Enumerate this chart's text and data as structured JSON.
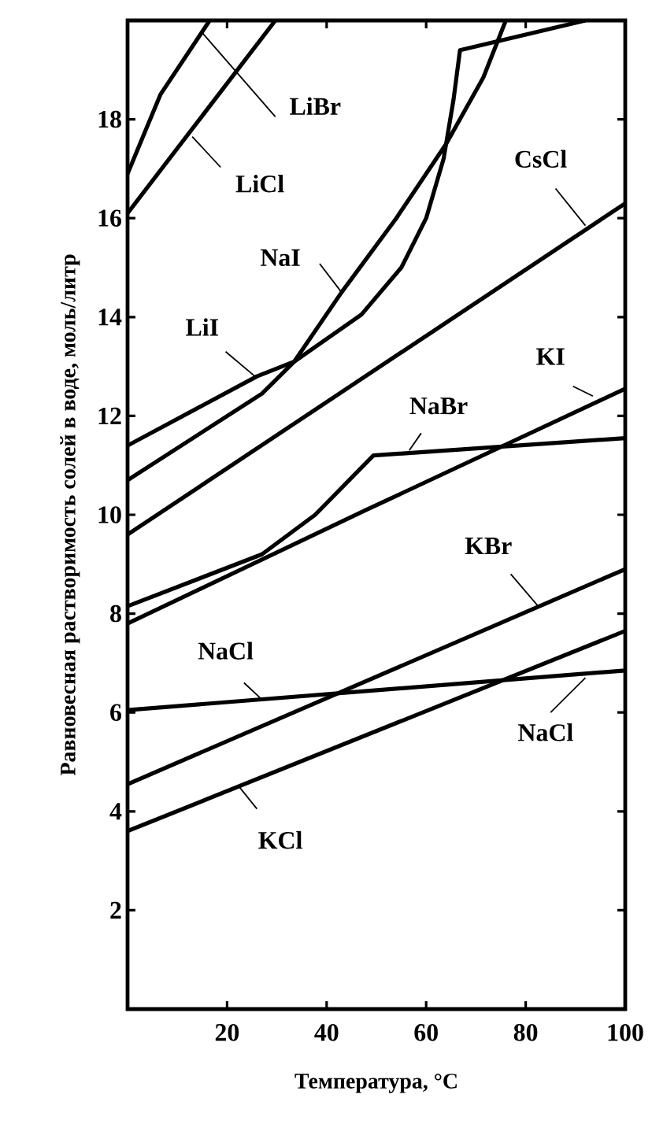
{
  "chart_data": {
    "type": "line",
    "xlabel": "Температура, °C",
    "ylabel": "Равновесная растворимость солей в воде, моль/литр",
    "xlim": [
      0,
      100
    ],
    "ylim": [
      0,
      20
    ],
    "xticks": [
      20,
      40,
      60,
      80,
      100
    ],
    "yticks": [
      2,
      4,
      6,
      8,
      10,
      12,
      14,
      16,
      18
    ],
    "grid": false,
    "line_style": "solid",
    "series": [
      {
        "name": "LiBr",
        "color": "#000000",
        "x": [
          0,
          6.6,
          16.5
        ],
        "values": [
          16.9,
          18.5,
          20
        ]
      },
      {
        "name": "LiCl",
        "color": "#000000",
        "x": [
          0,
          29.7
        ],
        "values": [
          16.1,
          20
        ]
      },
      {
        "name": "NaI",
        "color": "#000000",
        "x": [
          0,
          27,
          33.5,
          43,
          54,
          64,
          71.5,
          76
        ],
        "values": [
          10.7,
          12.45,
          13.1,
          14.5,
          16.0,
          17.5,
          18.85,
          20
        ]
      },
      {
        "name": "LiI",
        "color": "#000000",
        "x": [
          0,
          26,
          33.5,
          47,
          55,
          60,
          63.5,
          65.5,
          66.8,
          92
        ],
        "values": [
          11.4,
          12.8,
          13.1,
          14.05,
          15.0,
          16.0,
          17.2,
          18.4,
          19.4,
          20
        ]
      },
      {
        "name": "CsCl",
        "color": "#000000",
        "x": [
          0,
          100
        ],
        "values": [
          9.6,
          16.3
        ]
      },
      {
        "name": "KI",
        "color": "#000000",
        "x": [
          0,
          48,
          100
        ],
        "values": [
          7.8,
          10.1,
          12.55
        ]
      },
      {
        "name": "NaBr",
        "color": "#000000",
        "x": [
          0,
          27,
          37.7,
          49.4,
          100
        ],
        "values": [
          8.15,
          9.2,
          10.0,
          11.2,
          11.55
        ]
      },
      {
        "name": "KBr",
        "color": "#000000",
        "x": [
          0,
          100
        ],
        "values": [
          4.55,
          8.9
        ]
      },
      {
        "name": "NaCl",
        "color": "#000000",
        "x": [
          0,
          100
        ],
        "values": [
          6.05,
          6.85
        ]
      },
      {
        "name": "KCl",
        "color": "#000000",
        "x": [
          0,
          100
        ],
        "values": [
          3.6,
          7.65
        ]
      }
    ],
    "annotations": [
      {
        "text": "NaCl",
        "x": 92,
        "y": 6.7
      }
    ]
  }
}
